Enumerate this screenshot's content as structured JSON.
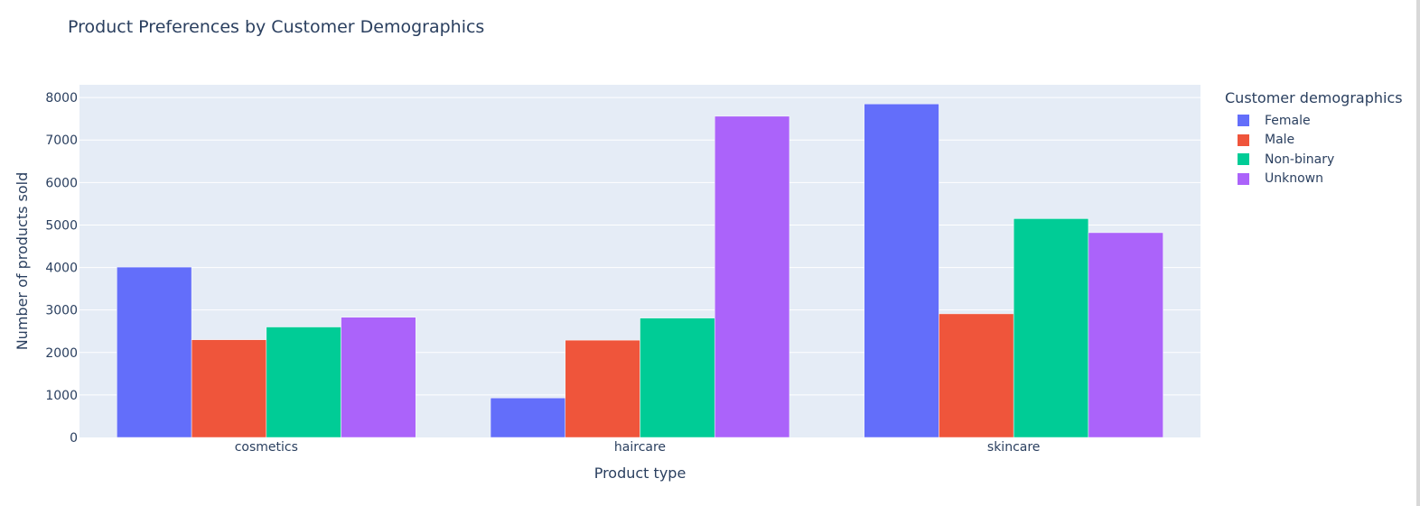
{
  "chart_data": {
    "type": "bar",
    "title": "Product Preferences by Customer Demographics",
    "xlabel": "Product type",
    "ylabel": "Number of products sold",
    "categories": [
      "cosmetics",
      "haircare",
      "skincare"
    ],
    "ylim": [
      0,
      8300
    ],
    "yticks": [
      0,
      1000,
      2000,
      3000,
      4000,
      5000,
      6000,
      7000,
      8000
    ],
    "grid": true,
    "barmode": "group",
    "legend": {
      "title": "Customer demographics",
      "placement": "right"
    },
    "series": [
      {
        "name": "Female",
        "color": "#636efa",
        "values": [
          4010,
          930,
          7850
        ]
      },
      {
        "name": "Male",
        "color": "#ef553b",
        "values": [
          2300,
          2290,
          2910
        ]
      },
      {
        "name": "Non-binary",
        "color": "#00cc96",
        "values": [
          2600,
          2810,
          5150
        ]
      },
      {
        "name": "Unknown",
        "color": "#ab63fa",
        "values": [
          2830,
          7560,
          4820
        ]
      }
    ]
  }
}
